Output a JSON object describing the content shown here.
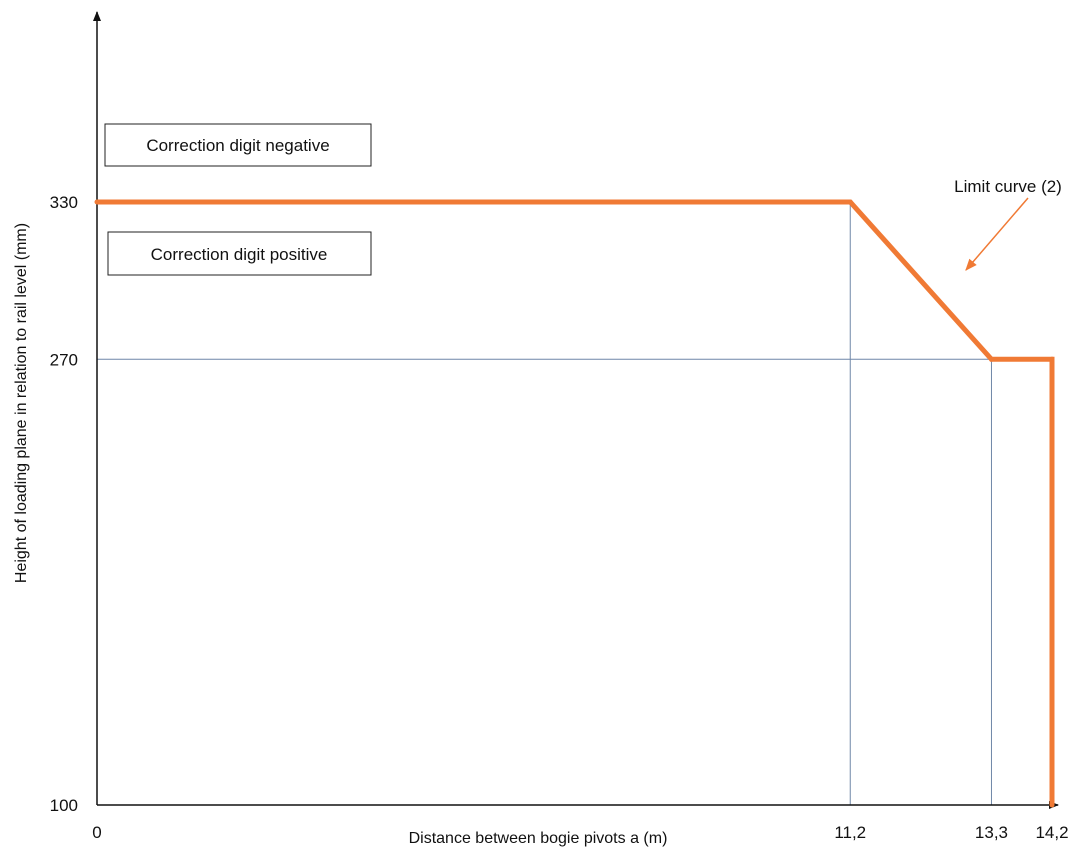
{
  "chart_data": {
    "type": "line",
    "xlabel": "Distance between bogie pivots a (m)",
    "ylabel": "Height of loading plane in relation to rail level (mm)",
    "xlim": [
      0,
      14.2
    ],
    "ylim": [
      100,
      330
    ],
    "x_ticks": [
      {
        "value": 0,
        "label": "0"
      },
      {
        "value": 11.2,
        "label": "11,2"
      },
      {
        "value": 13.3,
        "label": "13,3"
      },
      {
        "value": 14.2,
        "label": "14,2"
      }
    ],
    "y_ticks": [
      {
        "value": 100,
        "label": "100"
      },
      {
        "value": 270,
        "label": "270"
      },
      {
        "value": 330,
        "label": "330"
      }
    ],
    "series": [
      {
        "name": "Limit curve (2)",
        "color": "#f07a35",
        "points": [
          {
            "x": 0,
            "y": 330
          },
          {
            "x": 11.2,
            "y": 330
          },
          {
            "x": 13.3,
            "y": 270
          },
          {
            "x": 14.2,
            "y": 270
          },
          {
            "x": 14.2,
            "y": 100
          }
        ]
      }
    ],
    "reference_lines": [
      {
        "type": "horizontal",
        "y": 270,
        "x_from": 0,
        "x_to": 13.3
      },
      {
        "type": "vertical",
        "x": 11.2,
        "y_from": 100,
        "y_to": 330
      },
      {
        "type": "vertical",
        "x": 13.3,
        "y_from": 100,
        "y_to": 270
      }
    ],
    "annotations": {
      "box_negative": "Correction digit negative",
      "box_positive": "Correction digit positive",
      "curve_label": "Limit curve (2)"
    },
    "colors": {
      "curve": "#f07a35",
      "arrow": "#f07a35",
      "reference": "#6f86a8",
      "axis": "#111111"
    },
    "grid": false
  }
}
